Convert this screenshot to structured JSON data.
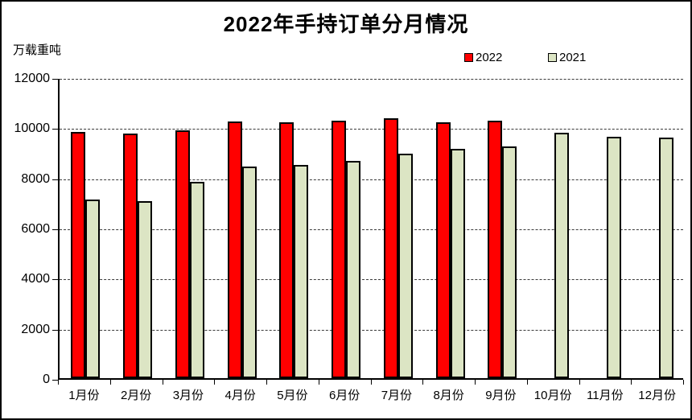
{
  "chart_data": {
    "type": "bar",
    "title": "2022年手持订单分月情况",
    "ylabel": "万载重吨",
    "xlabel": "",
    "categories": [
      "1月份",
      "2月份",
      "3月份",
      "4月份",
      "5月份",
      "6月份",
      "7月份",
      "8月份",
      "9月份",
      "10月份",
      "11月份",
      "12月份"
    ],
    "series": [
      {
        "name": "2022",
        "color": "#FF0000",
        "values": [
          9810,
          9760,
          9890,
          10240,
          10210,
          10270,
          10370,
          10210,
          10280,
          null,
          null,
          null
        ]
      },
      {
        "name": "2021",
        "color": "#DCE5C4",
        "values": [
          7110,
          7050,
          7830,
          8440,
          8500,
          8660,
          8950,
          9140,
          9240,
          9790,
          9640,
          9580
        ]
      }
    ],
    "ylim": [
      0,
      12000
    ],
    "yticks": [
      0,
      2000,
      4000,
      6000,
      8000,
      10000,
      12000
    ],
    "grid": true,
    "gridline_style": "dashed",
    "legend_position": "top-right",
    "bar_border_color": "#000000",
    "axis_color": "#000000"
  }
}
